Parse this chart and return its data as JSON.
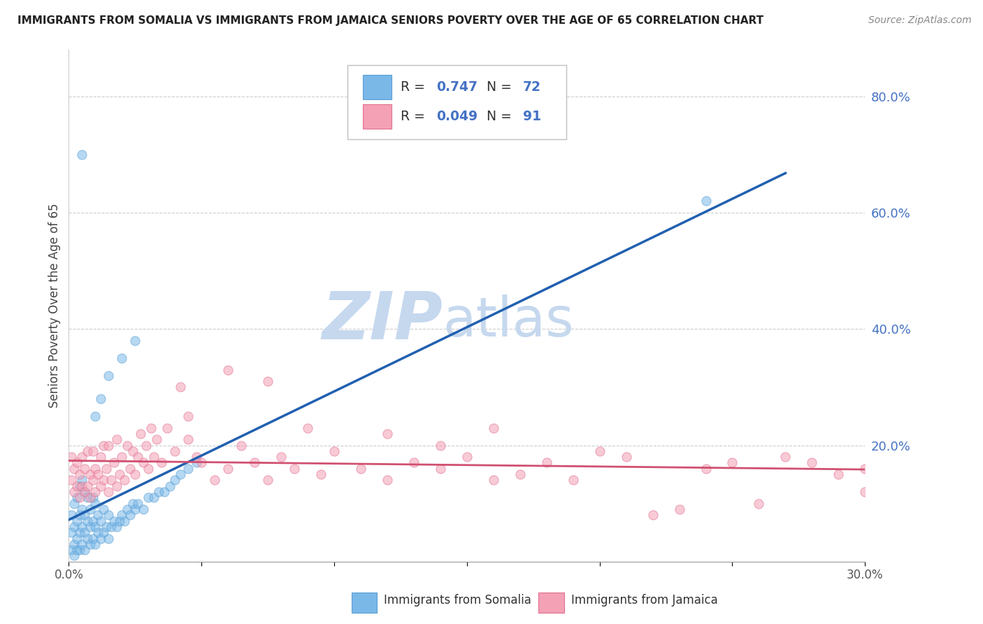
{
  "title": "IMMIGRANTS FROM SOMALIA VS IMMIGRANTS FROM JAMAICA SENIORS POVERTY OVER THE AGE OF 65 CORRELATION CHART",
  "source": "Source: ZipAtlas.com",
  "ylabel": "Seniors Poverty Over the Age of 65",
  "xlim": [
    0.0,
    0.3
  ],
  "ylim": [
    0.0,
    0.88
  ],
  "somalia_color": "#7ab8e8",
  "somalia_edge_color": "#5a9fd4",
  "jamaica_color": "#f4a0b5",
  "jamaica_edge_color": "#e07090",
  "somalia_R": 0.747,
  "somalia_N": 72,
  "jamaica_R": 0.049,
  "jamaica_N": 91,
  "somalia_line_color": "#2060b0",
  "jamaica_line_color": "#d05070",
  "blue_label_color": "#4472c4",
  "watermark_zip_color": "#c5d8ee",
  "watermark_atlas_color": "#c5d8ee",
  "grid_color": "#cccccc",
  "somalia_scatter_x": [
    0.001,
    0.001,
    0.001,
    0.002,
    0.002,
    0.002,
    0.002,
    0.003,
    0.003,
    0.003,
    0.003,
    0.004,
    0.004,
    0.004,
    0.004,
    0.005,
    0.005,
    0.005,
    0.005,
    0.006,
    0.006,
    0.006,
    0.006,
    0.007,
    0.007,
    0.007,
    0.008,
    0.008,
    0.008,
    0.009,
    0.009,
    0.009,
    0.01,
    0.01,
    0.01,
    0.011,
    0.011,
    0.012,
    0.012,
    0.013,
    0.013,
    0.014,
    0.015,
    0.015,
    0.016,
    0.017,
    0.018,
    0.019,
    0.02,
    0.021,
    0.022,
    0.023,
    0.024,
    0.025,
    0.026,
    0.028,
    0.03,
    0.032,
    0.034,
    0.036,
    0.038,
    0.04,
    0.042,
    0.045,
    0.048,
    0.01,
    0.012,
    0.015,
    0.02,
    0.025,
    0.005,
    0.24
  ],
  "somalia_scatter_y": [
    0.02,
    0.05,
    0.08,
    0.01,
    0.03,
    0.06,
    0.1,
    0.02,
    0.04,
    0.07,
    0.11,
    0.02,
    0.05,
    0.08,
    0.13,
    0.03,
    0.06,
    0.09,
    0.14,
    0.02,
    0.05,
    0.08,
    0.12,
    0.04,
    0.07,
    0.11,
    0.03,
    0.06,
    0.09,
    0.04,
    0.07,
    0.11,
    0.03,
    0.06,
    0.1,
    0.05,
    0.08,
    0.04,
    0.07,
    0.05,
    0.09,
    0.06,
    0.04,
    0.08,
    0.06,
    0.07,
    0.06,
    0.07,
    0.08,
    0.07,
    0.09,
    0.08,
    0.1,
    0.09,
    0.1,
    0.09,
    0.11,
    0.11,
    0.12,
    0.12,
    0.13,
    0.14,
    0.15,
    0.16,
    0.17,
    0.25,
    0.28,
    0.32,
    0.35,
    0.38,
    0.7,
    0.62
  ],
  "jamaica_scatter_x": [
    0.001,
    0.001,
    0.002,
    0.002,
    0.003,
    0.003,
    0.004,
    0.004,
    0.005,
    0.005,
    0.006,
    0.006,
    0.007,
    0.007,
    0.008,
    0.008,
    0.009,
    0.009,
    0.01,
    0.01,
    0.011,
    0.012,
    0.012,
    0.013,
    0.013,
    0.014,
    0.015,
    0.015,
    0.016,
    0.017,
    0.018,
    0.018,
    0.019,
    0.02,
    0.021,
    0.022,
    0.023,
    0.024,
    0.025,
    0.026,
    0.027,
    0.028,
    0.029,
    0.03,
    0.031,
    0.032,
    0.033,
    0.035,
    0.037,
    0.04,
    0.042,
    0.045,
    0.048,
    0.05,
    0.055,
    0.06,
    0.065,
    0.07,
    0.075,
    0.08,
    0.085,
    0.09,
    0.095,
    0.1,
    0.11,
    0.12,
    0.13,
    0.14,
    0.15,
    0.16,
    0.17,
    0.18,
    0.19,
    0.2,
    0.21,
    0.22,
    0.23,
    0.24,
    0.25,
    0.26,
    0.27,
    0.28,
    0.29,
    0.06,
    0.075,
    0.12,
    0.14,
    0.16,
    0.045,
    0.3,
    0.3
  ],
  "jamaica_scatter_y": [
    0.14,
    0.18,
    0.12,
    0.16,
    0.13,
    0.17,
    0.11,
    0.15,
    0.13,
    0.18,
    0.12,
    0.16,
    0.13,
    0.19,
    0.11,
    0.15,
    0.14,
    0.19,
    0.12,
    0.16,
    0.15,
    0.13,
    0.18,
    0.14,
    0.2,
    0.16,
    0.12,
    0.2,
    0.14,
    0.17,
    0.13,
    0.21,
    0.15,
    0.18,
    0.14,
    0.2,
    0.16,
    0.19,
    0.15,
    0.18,
    0.22,
    0.17,
    0.2,
    0.16,
    0.23,
    0.18,
    0.21,
    0.17,
    0.23,
    0.19,
    0.3,
    0.21,
    0.18,
    0.17,
    0.14,
    0.16,
    0.2,
    0.17,
    0.14,
    0.18,
    0.16,
    0.23,
    0.15,
    0.19,
    0.16,
    0.14,
    0.17,
    0.16,
    0.18,
    0.23,
    0.15,
    0.17,
    0.14,
    0.19,
    0.18,
    0.08,
    0.09,
    0.16,
    0.17,
    0.1,
    0.18,
    0.17,
    0.15,
    0.33,
    0.31,
    0.22,
    0.2,
    0.14,
    0.25,
    0.16,
    0.12
  ]
}
